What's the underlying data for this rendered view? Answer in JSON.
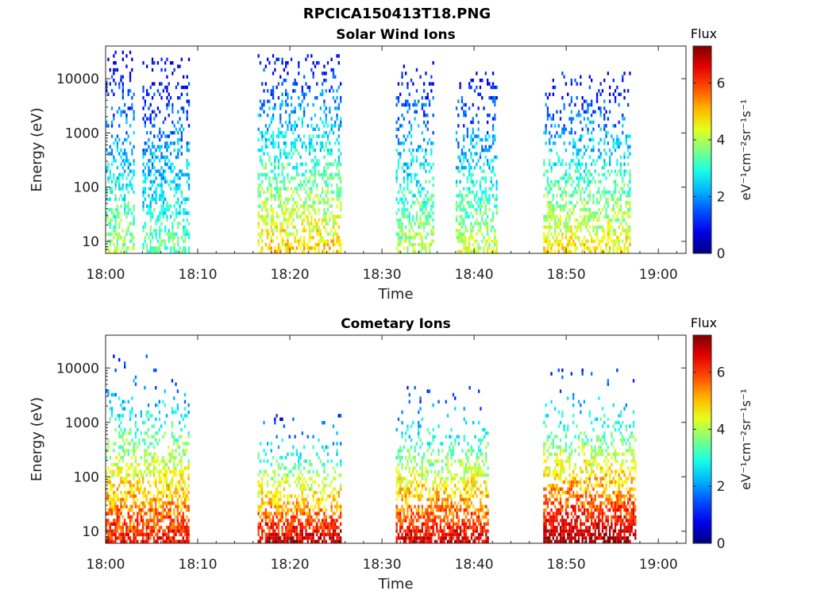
{
  "figure": {
    "filename_title": "RPCICA150413T18.PNG"
  },
  "colorbar": {
    "label": "Flux",
    "unit_label": "eV⁻¹cm⁻²sr⁻¹s⁻¹",
    "ticks": [
      "0",
      "2",
      "4",
      "6"
    ],
    "range": [
      0,
      7.3
    ]
  },
  "chart_data": [
    {
      "type": "heatmap",
      "title": "Solar Wind Ions",
      "xlabel": "Time",
      "ylabel": "Energy (eV)",
      "x_ticks": [
        "18:00",
        "18:10",
        "18:20",
        "18:30",
        "18:40",
        "18:50",
        "19:00"
      ],
      "y_ticks": [
        "10",
        "100",
        "1000",
        "10000"
      ],
      "y_scale": "log",
      "ylim": [
        6,
        40000
      ],
      "xlim_minutes": [
        0,
        63
      ],
      "bursts": [
        {
          "start_min": 0.0,
          "end_min": 3.0,
          "low_flux": 4.0,
          "max_energy": 36000
        },
        {
          "start_min": 4.0,
          "end_min": 9.0,
          "low_flux": 3.5,
          "max_energy": 28000
        },
        {
          "start_min": 16.5,
          "end_min": 25.5,
          "low_flux": 5.0,
          "max_energy": 32000
        },
        {
          "start_min": 31.5,
          "end_min": 35.5,
          "low_flux": 4.2,
          "max_energy": 24000
        },
        {
          "start_min": 38.0,
          "end_min": 42.5,
          "low_flux": 4.3,
          "max_energy": 15000
        },
        {
          "start_min": 47.5,
          "end_min": 57.0,
          "low_flux": 4.8,
          "max_energy": 15000
        }
      ]
    },
    {
      "type": "heatmap",
      "title": "Cometary Ions",
      "xlabel": "Time",
      "ylabel": "Energy (eV)",
      "x_ticks": [
        "18:00",
        "18:10",
        "18:20",
        "18:30",
        "18:40",
        "18:50",
        "19:00"
      ],
      "y_ticks": [
        "10",
        "100",
        "1000",
        "10000"
      ],
      "y_scale": "log",
      "ylim": [
        6,
        40000
      ],
      "xlim_minutes": [
        0,
        63
      ],
      "bursts": [
        {
          "start_min": 0.0,
          "end_min": 9.0,
          "low_flux": 6.5,
          "max_energy": 20000
        },
        {
          "start_min": 16.5,
          "end_min": 25.5,
          "low_flux": 7.0,
          "max_energy": 1500
        },
        {
          "start_min": 31.5,
          "end_min": 41.5,
          "low_flux": 6.8,
          "max_energy": 5000
        },
        {
          "start_min": 47.5,
          "end_min": 57.5,
          "low_flux": 7.2,
          "max_energy": 11000
        }
      ]
    }
  ]
}
